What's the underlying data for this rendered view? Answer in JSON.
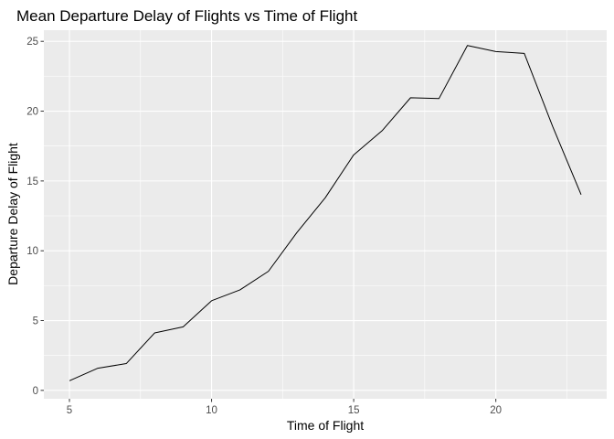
{
  "chart_data": {
    "type": "line",
    "title": "Mean Departure Delay of Flights vs Time of Flight",
    "xlabel": "Time of Flight",
    "ylabel": "Departure Delay of Flight",
    "xlim": [
      4.1,
      23.9
    ],
    "ylim": [
      -0.6,
      25.8
    ],
    "xticks": [
      5,
      10,
      15,
      20
    ],
    "yticks": [
      0,
      5,
      10,
      15,
      20,
      25
    ],
    "grid": true,
    "legend": "none",
    "colors": {
      "panel": "#ebebeb",
      "grid": "#ffffff",
      "line": "#000000",
      "tick_text": "#4d4d4d"
    },
    "series": [
      {
        "x": [
          5,
          6,
          7,
          8,
          9,
          10,
          11,
          12,
          13,
          14,
          15,
          16,
          17,
          18,
          19,
          20,
          21,
          22,
          23
        ],
        "values": [
          0.69,
          1.59,
          1.92,
          4.12,
          4.55,
          6.42,
          7.2,
          8.53,
          11.3,
          13.8,
          16.87,
          18.6,
          20.96,
          20.9,
          24.7,
          24.27,
          24.14,
          18.9,
          14.02
        ]
      }
    ]
  }
}
